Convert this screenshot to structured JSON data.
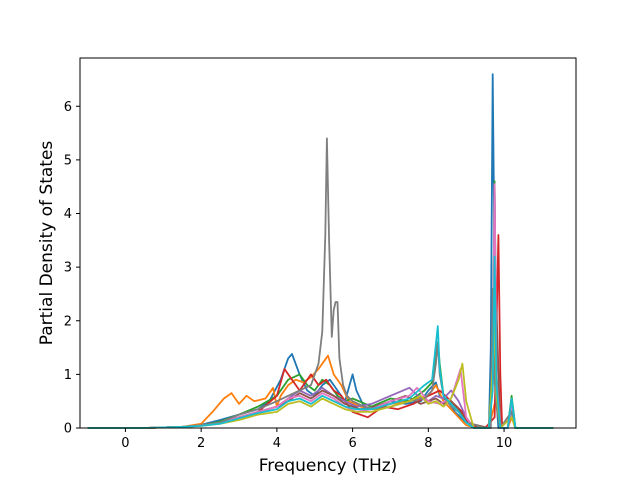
{
  "chart_data": {
    "type": "line",
    "title": "",
    "xlabel": "Frequency (THz)",
    "ylabel": "Partial Density of States",
    "xlim": [
      -1.2,
      11.9
    ],
    "ylim": [
      0,
      6.9
    ],
    "x_ticks": [
      0,
      2,
      4,
      6,
      8,
      10
    ],
    "y_ticks": [
      0,
      1,
      2,
      3,
      4,
      5,
      6
    ],
    "x_tick_labels": [
      "0",
      "2",
      "4",
      "6",
      "8",
      "10"
    ],
    "y_tick_labels": [
      "0",
      "1",
      "2",
      "3",
      "4",
      "5",
      "6"
    ],
    "grid": false,
    "legend": "none",
    "series": [
      {
        "color": "#1f77b4",
        "x": [
          -1.0,
          0.5,
          1.5,
          2.0,
          2.5,
          3.0,
          3.5,
          3.8,
          4.1,
          4.3,
          4.4,
          4.6,
          4.8,
          5.0,
          5.2,
          5.4,
          5.6,
          5.8,
          6.0,
          6.1,
          6.3,
          6.6,
          7.0,
          7.4,
          7.8,
          8.0,
          8.2,
          8.3,
          8.5,
          8.7,
          9.0,
          9.3,
          9.6,
          9.65,
          9.7,
          9.75,
          9.8,
          9.85,
          9.9,
          10.1,
          10.15,
          10.2,
          10.25,
          10.3,
          10.5,
          11.3
        ],
        "y": [
          0,
          0,
          0.02,
          0.06,
          0.15,
          0.25,
          0.35,
          0.5,
          0.9,
          1.3,
          1.38,
          1.0,
          0.7,
          0.6,
          0.8,
          0.9,
          0.7,
          0.5,
          1.0,
          0.7,
          0.4,
          0.35,
          0.5,
          0.45,
          0.5,
          0.7,
          0.85,
          0.6,
          0.5,
          0.3,
          0.1,
          0,
          0,
          1.5,
          6.6,
          3.0,
          0.5,
          0,
          0,
          0,
          0.3,
          0.55,
          0.3,
          0,
          0,
          0
        ]
      },
      {
        "color": "#ff7f0e",
        "x": [
          -1.0,
          0.5,
          1.5,
          2.0,
          2.3,
          2.6,
          2.8,
          3.0,
          3.2,
          3.4,
          3.7,
          3.9,
          4.0,
          4.1,
          4.3,
          4.5,
          4.7,
          4.9,
          5.1,
          5.3,
          5.35,
          5.5,
          5.7,
          5.9,
          6.2,
          6.6,
          7.0,
          7.5,
          8.0,
          8.2,
          8.4,
          8.6,
          8.8,
          9.0,
          9.3,
          9.6,
          9.7,
          9.8,
          9.9,
          10.1,
          10.2,
          10.3,
          11.3
        ],
        "y": [
          0,
          0,
          0.02,
          0.08,
          0.3,
          0.55,
          0.65,
          0.45,
          0.6,
          0.5,
          0.55,
          0.75,
          0.4,
          0.6,
          0.8,
          0.9,
          0.85,
          0.95,
          1.1,
          1.3,
          1.35,
          1.0,
          0.8,
          0.5,
          0.4,
          0.35,
          0.45,
          0.5,
          0.6,
          0.8,
          0.5,
          0.35,
          0.2,
          0.05,
          0,
          0,
          0.3,
          0.6,
          0,
          0,
          0.2,
          0,
          0
        ]
      },
      {
        "color": "#2ca02c",
        "x": [
          -1.0,
          0.5,
          1.5,
          2.0,
          2.5,
          3.0,
          3.5,
          4.0,
          4.3,
          4.6,
          4.8,
          5.0,
          5.2,
          5.4,
          5.6,
          5.8,
          6.0,
          6.5,
          7.0,
          7.5,
          7.9,
          8.1,
          8.25,
          8.3,
          8.4,
          8.6,
          8.8,
          9.0,
          9.3,
          9.6,
          9.7,
          9.75,
          9.8,
          9.9,
          10.1,
          10.2,
          10.3,
          11.3
        ],
        "y": [
          0,
          0,
          0.02,
          0.05,
          0.12,
          0.25,
          0.4,
          0.6,
          0.9,
          1.0,
          0.8,
          0.7,
          0.9,
          0.8,
          0.6,
          0.5,
          0.55,
          0.4,
          0.55,
          0.5,
          0.7,
          0.85,
          1.6,
          1.2,
          0.6,
          0.5,
          0.35,
          0.15,
          0,
          0,
          1.2,
          4.6,
          1.0,
          0,
          0,
          0.6,
          0,
          0
        ]
      },
      {
        "color": "#d62728",
        "x": [
          -1.0,
          0.5,
          1.5,
          2.0,
          2.5,
          3.0,
          3.5,
          4.0,
          4.2,
          4.4,
          4.6,
          4.9,
          5.1,
          5.3,
          5.5,
          5.7,
          6.0,
          6.4,
          6.8,
          7.2,
          7.6,
          8.0,
          8.3,
          8.6,
          8.9,
          9.1,
          9.5,
          9.75,
          9.85,
          9.9,
          9.95,
          10.1,
          10.2,
          10.3,
          11.3
        ],
        "y": [
          0,
          0,
          0.02,
          0.05,
          0.1,
          0.2,
          0.3,
          0.6,
          1.1,
          0.9,
          0.7,
          1.0,
          0.8,
          0.9,
          0.7,
          0.6,
          0.3,
          0.2,
          0.4,
          0.35,
          0.45,
          0.6,
          0.7,
          0.5,
          0.3,
          0.05,
          0,
          0.2,
          3.6,
          1.0,
          0,
          0,
          0.4,
          0,
          0
        ]
      },
      {
        "color": "#9467bd",
        "x": [
          -1.0,
          0.5,
          1.5,
          2.0,
          2.5,
          3.0,
          3.5,
          4.0,
          4.3,
          4.6,
          4.9,
          5.2,
          5.5,
          5.8,
          6.1,
          6.5,
          7.0,
          7.5,
          7.8,
          8.0,
          8.2,
          8.4,
          8.6,
          8.8,
          9.0,
          9.2,
          9.6,
          9.7,
          9.75,
          9.8,
          9.9,
          10.1,
          10.2,
          10.3,
          11.3
        ],
        "y": [
          0,
          0,
          0.02,
          0.05,
          0.1,
          0.2,
          0.3,
          0.4,
          0.55,
          0.7,
          0.6,
          0.75,
          0.6,
          0.5,
          0.4,
          0.45,
          0.6,
          0.75,
          0.55,
          0.5,
          0.6,
          0.55,
          0.7,
          0.5,
          0.2,
          0,
          0,
          1.0,
          4.5,
          0.8,
          0,
          0,
          0.35,
          0,
          0
        ]
      },
      {
        "color": "#8c564b",
        "x": [
          -1.0,
          0.5,
          1.5,
          2.0,
          2.5,
          3.0,
          3.5,
          4.0,
          4.3,
          4.6,
          4.9,
          5.2,
          5.5,
          5.8,
          6.2,
          6.6,
          7.0,
          7.4,
          7.8,
          8.0,
          8.2,
          8.4,
          8.6,
          8.8,
          9.0,
          9.6,
          9.7,
          9.8,
          9.9,
          10.2,
          10.3,
          11.3
        ],
        "y": [
          0,
          0,
          0.02,
          0.05,
          0.1,
          0.2,
          0.3,
          0.4,
          0.5,
          0.65,
          0.55,
          0.7,
          0.6,
          0.45,
          0.35,
          0.4,
          0.5,
          0.6,
          0.45,
          0.5,
          0.55,
          0.45,
          0.5,
          0.35,
          0.1,
          0,
          0.8,
          2.2,
          0,
          0.3,
          0,
          0
        ]
      },
      {
        "color": "#e377c2",
        "x": [
          -1.0,
          0.5,
          1.5,
          2.0,
          2.5,
          3.0,
          3.5,
          4.0,
          4.3,
          4.6,
          4.9,
          5.2,
          5.5,
          5.8,
          6.1,
          6.5,
          7.0,
          7.5,
          7.7,
          8.0,
          8.3,
          8.6,
          8.85,
          8.9,
          9.0,
          9.2,
          9.6,
          9.7,
          9.75,
          9.8,
          9.9,
          10.1,
          10.2,
          10.3,
          11.3
        ],
        "y": [
          0,
          0,
          0.02,
          0.05,
          0.1,
          0.2,
          0.3,
          0.4,
          0.55,
          0.6,
          0.5,
          0.65,
          0.55,
          0.4,
          0.3,
          0.35,
          0.5,
          0.6,
          0.75,
          0.5,
          0.45,
          0.55,
          1.1,
          0.8,
          0.2,
          0,
          0,
          0.8,
          4.55,
          0.9,
          0,
          0,
          0.45,
          0,
          0
        ]
      },
      {
        "color": "#7f7f7f",
        "x": [
          -1.0,
          0.5,
          1.5,
          2.0,
          2.5,
          3.0,
          3.5,
          4.0,
          4.3,
          4.6,
          4.9,
          5.1,
          5.2,
          5.28,
          5.32,
          5.38,
          5.45,
          5.5,
          5.55,
          5.6,
          5.65,
          5.75,
          5.85,
          6.0,
          6.3,
          6.7,
          7.0,
          7.5,
          7.9,
          8.1,
          8.2,
          8.25,
          8.3,
          8.4,
          8.6,
          8.8,
          9.0,
          9.5,
          9.65,
          9.7,
          9.75,
          9.8,
          9.9,
          10.2,
          10.3,
          11.3
        ],
        "y": [
          0,
          0,
          0.02,
          0.05,
          0.1,
          0.25,
          0.35,
          0.5,
          0.6,
          0.7,
          0.8,
          1.2,
          1.8,
          3.6,
          5.4,
          3.5,
          1.7,
          2.2,
          2.35,
          2.35,
          1.3,
          0.8,
          0.6,
          0.5,
          0.4,
          0.35,
          0.4,
          0.5,
          0.55,
          0.7,
          1.2,
          1.6,
          1.0,
          0.6,
          0.4,
          0.3,
          0.1,
          0,
          0,
          2.6,
          0.9,
          0.4,
          0,
          0.3,
          0,
          0
        ]
      },
      {
        "color": "#bcbd22",
        "x": [
          -1.0,
          0.5,
          1.5,
          2.0,
          2.5,
          3.0,
          3.5,
          4.0,
          4.3,
          4.6,
          4.9,
          5.2,
          5.5,
          5.8,
          6.1,
          6.5,
          7.0,
          7.5,
          7.8,
          8.0,
          8.2,
          8.4,
          8.6,
          8.8,
          8.9,
          9.0,
          9.2,
          9.6,
          9.7,
          9.75,
          9.8,
          9.9,
          10.2,
          10.3,
          11.3
        ],
        "y": [
          0,
          0,
          0.02,
          0.04,
          0.08,
          0.15,
          0.25,
          0.3,
          0.45,
          0.5,
          0.4,
          0.55,
          0.45,
          0.35,
          0.3,
          0.3,
          0.4,
          0.5,
          0.6,
          0.45,
          0.5,
          0.4,
          0.55,
          0.9,
          1.2,
          0.5,
          0,
          0,
          1.1,
          2.0,
          0.6,
          0,
          0.2,
          0,
          0
        ]
      },
      {
        "color": "#17becf",
        "x": [
          -1.0,
          0.5,
          1.5,
          2.0,
          2.5,
          3.0,
          3.5,
          4.0,
          4.3,
          4.6,
          4.9,
          5.2,
          5.5,
          5.8,
          6.1,
          6.5,
          7.0,
          7.5,
          7.9,
          8.1,
          8.25,
          8.3,
          8.4,
          8.6,
          8.8,
          9.0,
          9.2,
          9.6,
          9.7,
          9.75,
          9.8,
          9.9,
          10.1,
          10.2,
          10.3,
          11.3
        ],
        "y": [
          0,
          0,
          0.02,
          0.04,
          0.08,
          0.18,
          0.28,
          0.35,
          0.5,
          0.55,
          0.45,
          0.6,
          0.5,
          0.4,
          0.35,
          0.35,
          0.45,
          0.55,
          0.8,
          0.9,
          1.9,
          1.1,
          0.6,
          0.45,
          0.3,
          0.1,
          0,
          0,
          0.7,
          3.2,
          0.8,
          0,
          0,
          0.55,
          0,
          0
        ]
      }
    ]
  }
}
